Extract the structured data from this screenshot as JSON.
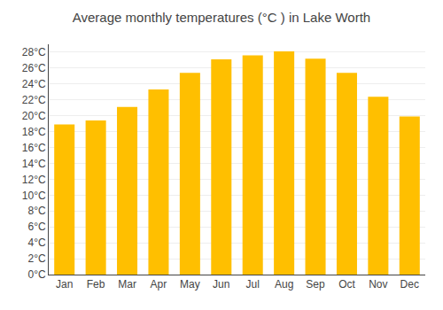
{
  "chart_data": {
    "type": "bar",
    "title": "Average monthly temperatures (°C ) in Lake Worth",
    "categories": [
      "Jan",
      "Feb",
      "Mar",
      "Apr",
      "May",
      "Jun",
      "Jul",
      "Aug",
      "Sep",
      "Oct",
      "Nov",
      "Dec"
    ],
    "values": [
      18.9,
      19.4,
      21.1,
      23.3,
      25.4,
      27.1,
      27.6,
      28.1,
      27.2,
      25.4,
      22.4,
      19.9
    ],
    "color": "#FFBF00",
    "ylim": [
      0,
      29
    ],
    "yticks": [
      {
        "value": 0,
        "label": "0°C"
      },
      {
        "value": 2,
        "label": "2°C"
      },
      {
        "value": 4,
        "label": "4°C"
      },
      {
        "value": 6,
        "label": "6°C"
      },
      {
        "value": 8,
        "label": "8°C"
      },
      {
        "value": 10,
        "label": "10°C"
      },
      {
        "value": 12,
        "label": "12°C"
      },
      {
        "value": 14,
        "label": "14°C"
      },
      {
        "value": 16,
        "label": "16°C"
      },
      {
        "value": 18,
        "label": "18°C"
      },
      {
        "value": 20,
        "label": "20°C"
      },
      {
        "value": 22,
        "label": "22°C"
      },
      {
        "value": 24,
        "label": "24°C"
      },
      {
        "value": 26,
        "label": "26°C"
      },
      {
        "value": 28,
        "label": "28°C"
      }
    ],
    "grid": true
  }
}
